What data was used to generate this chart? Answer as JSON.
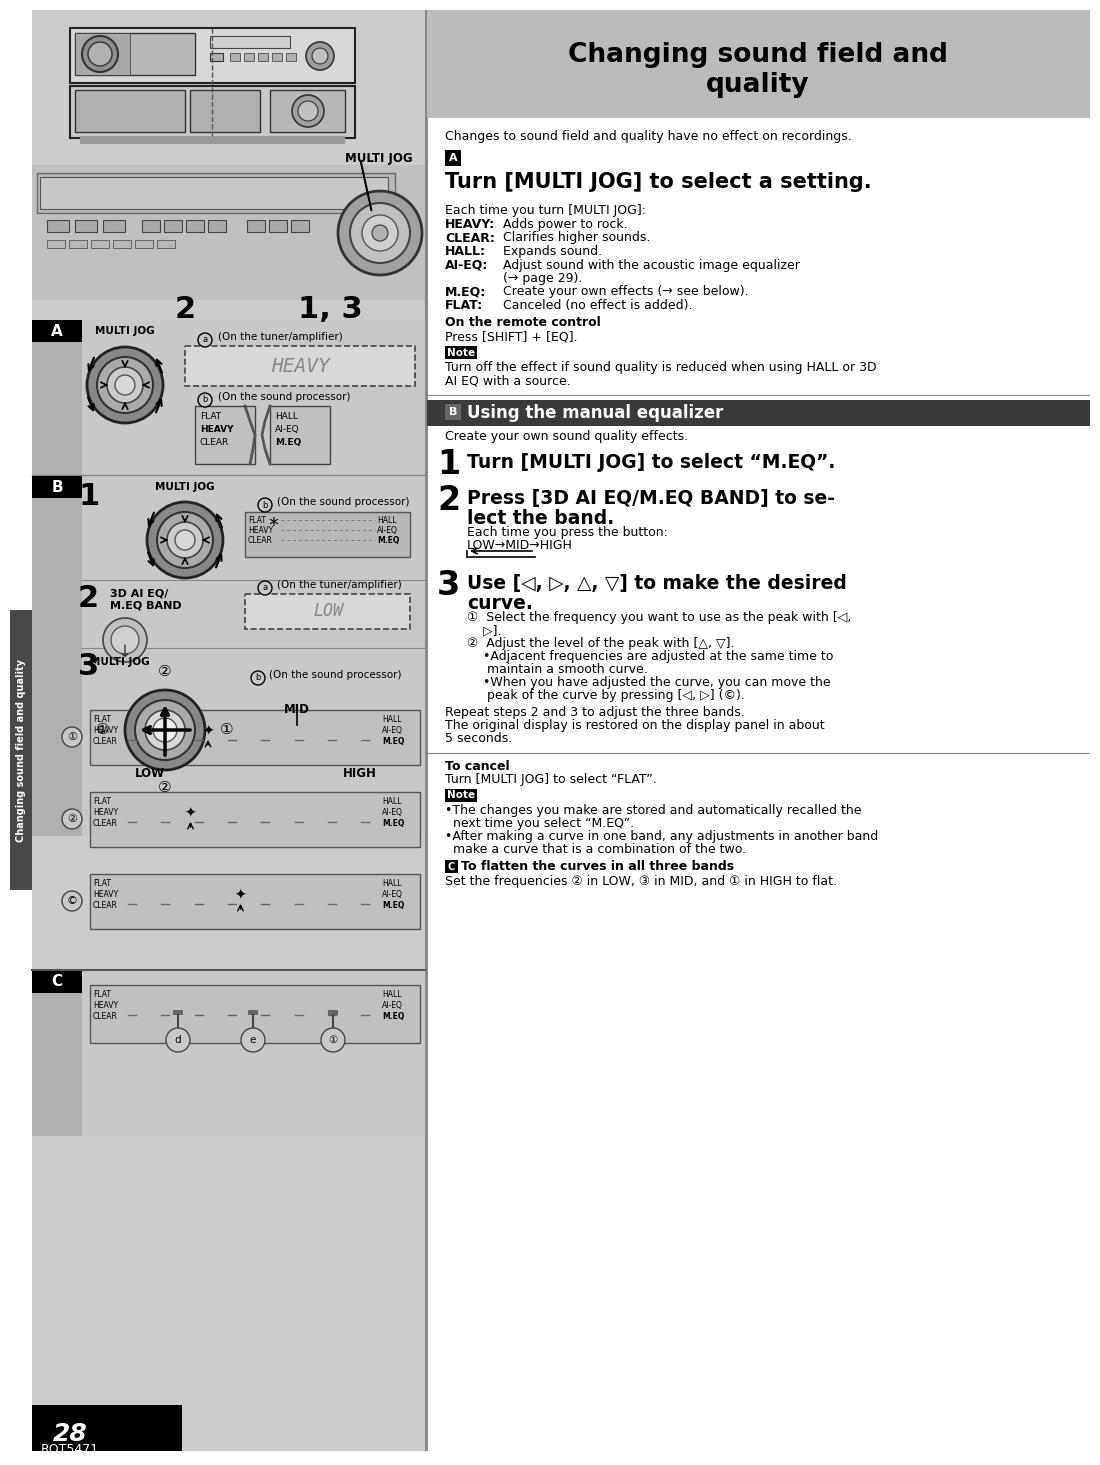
{
  "page_bg": "#ffffff",
  "left_panel_bg": "#d0d0d0",
  "sidebar_bg": "#505050",
  "sidebar_text": "Changing sound field and quality",
  "title_text1": "Changing sound field and",
  "title_text2": "quality",
  "title_bg": "#b8b8b8",
  "page_number": "28",
  "page_code": "RQT5471",
  "intro_text": "Changes to sound field and quality have no effect on recordings.",
  "sA_label": "A",
  "sA_heading": "Turn [MULTI JOG] to select a setting.",
  "sA_intro": "Each time you turn [MULTI JOG]:",
  "sA_items": [
    [
      "HEAVY:",
      "Adds power to rock."
    ],
    [
      "CLEAR:",
      "Clarifies higher sounds."
    ],
    [
      "HALL:",
      "Expands sound."
    ],
    [
      "AI-EQ:",
      "Adjust sound with the acoustic image equalizer"
    ],
    [
      "",
      "(→ page 29)."
    ],
    [
      "M.EQ:",
      "Create your own effects (→ see below)."
    ],
    [
      "FLAT:",
      "Canceled (no effect is added)."
    ]
  ],
  "remote_bold": "On the remote control",
  "remote_text": "Press [SHIFT] + [EQ].",
  "note1_text": "Turn off the effect if sound quality is reduced when using HALL or 3D\nAI EQ with a source.",
  "sB_heading": "Using the manual equalizer",
  "sB_intro": "Create your own sound quality effects.",
  "step1_text": "Turn [MULTI JOG] to select “M.EQ”.",
  "step2_line1": "Press [3D AI EQ/M.EQ BAND] to se-",
  "step2_line2": "lect the band.",
  "step2_sub": "Each time you press the button:",
  "step2_flow": "LOW→MID→HIGH",
  "step3_line1": "Use [◁, ▷, △, ▽] to make the desired",
  "step3_line2": "curve.",
  "step3_a1": "①  Select the frequency you want to use as the peak with [◁,",
  "step3_a2": "    ▷].",
  "step3_b1": "②  Adjust the level of the peak with [△, ▽].",
  "step3_b2": "    •Adjacent frequencies are adjusted at the same time to",
  "step3_b3": "     maintain a smooth curve.",
  "step3_b4": "    •When you have adjusted the curve, you can move the",
  "step3_b5": "     peak of the curve by pressing [◁, ▷] (©).",
  "repeat1": "Repeat steps 2 and 3 to adjust the three bands.",
  "repeat2": "The original display is restored on the display panel in about",
  "repeat3": "5 seconds.",
  "cancel_bold": "To cancel",
  "cancel_text": "Turn [MULTI JOG] to select “FLAT”.",
  "note2_a1": "•The changes you make are stored and automatically recalled the",
  "note2_a2": "  next time you select “M.EQ”.",
  "note2_b1": "•After making a curve in one band, any adjustments in another band",
  "note2_b2": "  make a curve that is a combination of the two.",
  "sC_label": "C",
  "sC_bold": "To flatten the curves in all three bands",
  "sC_text": "Set the frequencies ② in LOW, ③ in MID, and ① in HIGH to flat."
}
